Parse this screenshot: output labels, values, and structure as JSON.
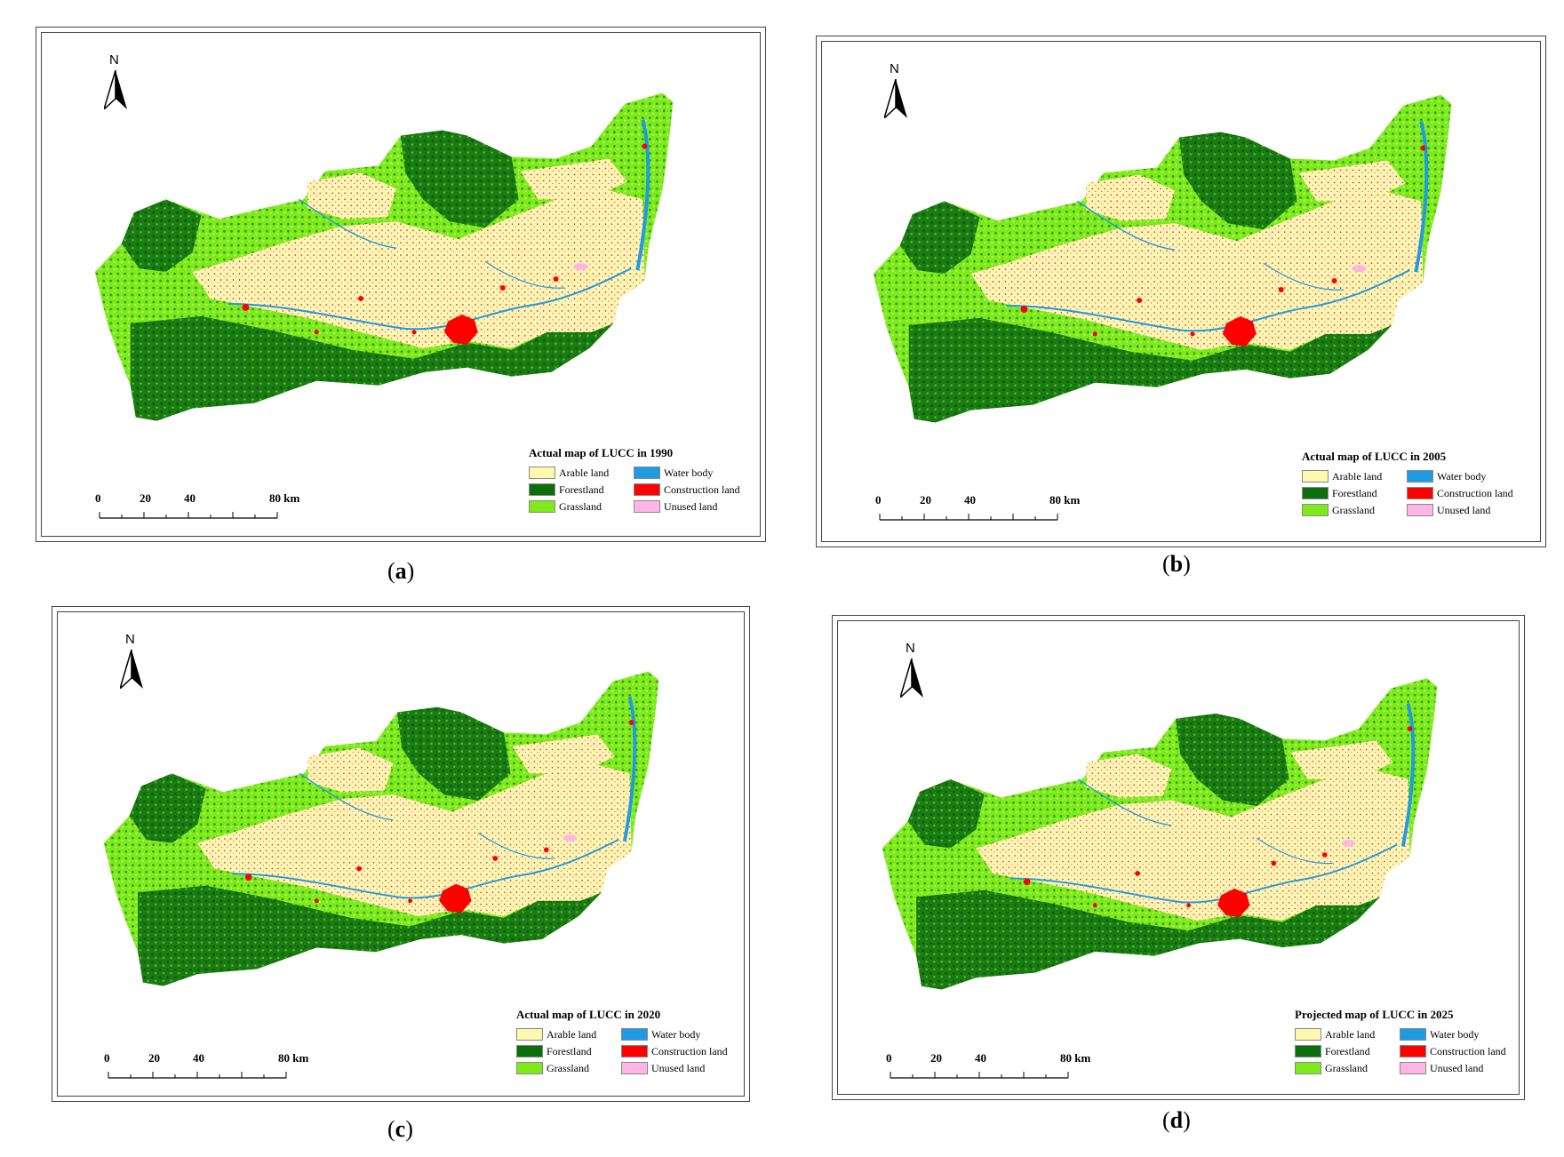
{
  "north_label": "N",
  "scale": {
    "ticks": [
      "0",
      "20",
      "40"
    ],
    "end_label": "80",
    "unit": "km"
  },
  "legend_items": [
    {
      "label": "Arable land",
      "color": "#FFF9B0"
    },
    {
      "label": "Water body",
      "color": "#1E9BE3"
    },
    {
      "label": "Forestland",
      "color": "#0C6E0C"
    },
    {
      "label": "Construction land",
      "color": "#FF0000"
    },
    {
      "label": "Grassland",
      "color": "#7EEA1C"
    },
    {
      "label": "Unused land",
      "color": "#FFB6E6"
    }
  ],
  "panels": [
    {
      "id": "a",
      "caption_letter": "a",
      "title": "Actual map of LUCC in 1990"
    },
    {
      "id": "b",
      "caption_letter": "b",
      "title": "Actual map of LUCC in 2005"
    },
    {
      "id": "c",
      "caption_letter": "c",
      "title": "Actual map of LUCC in 2020"
    },
    {
      "id": "d",
      "caption_letter": "d",
      "title": "Projected map of LUCC in 2025"
    }
  ]
}
